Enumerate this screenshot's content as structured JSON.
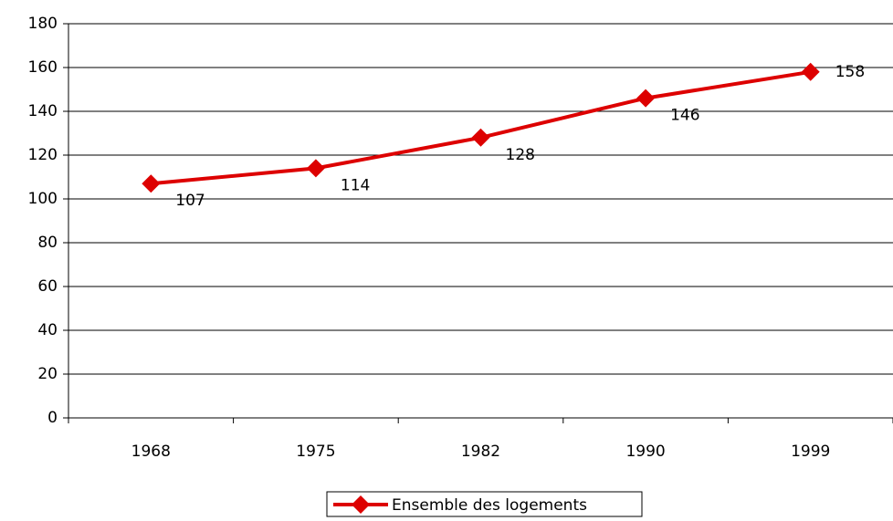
{
  "chart_data": {
    "type": "line",
    "categories": [
      "1968",
      "1975",
      "1982",
      "1990",
      "1999"
    ],
    "series": [
      {
        "name": "Ensemble des logements",
        "color": "#dd0000",
        "values": [
          107,
          114,
          128,
          146,
          158
        ]
      }
    ],
    "ylim": [
      0,
      180
    ],
    "yticks": [
      0,
      20,
      40,
      60,
      80,
      100,
      120,
      140,
      160,
      180
    ],
    "grid": true,
    "legend": "bottom"
  }
}
